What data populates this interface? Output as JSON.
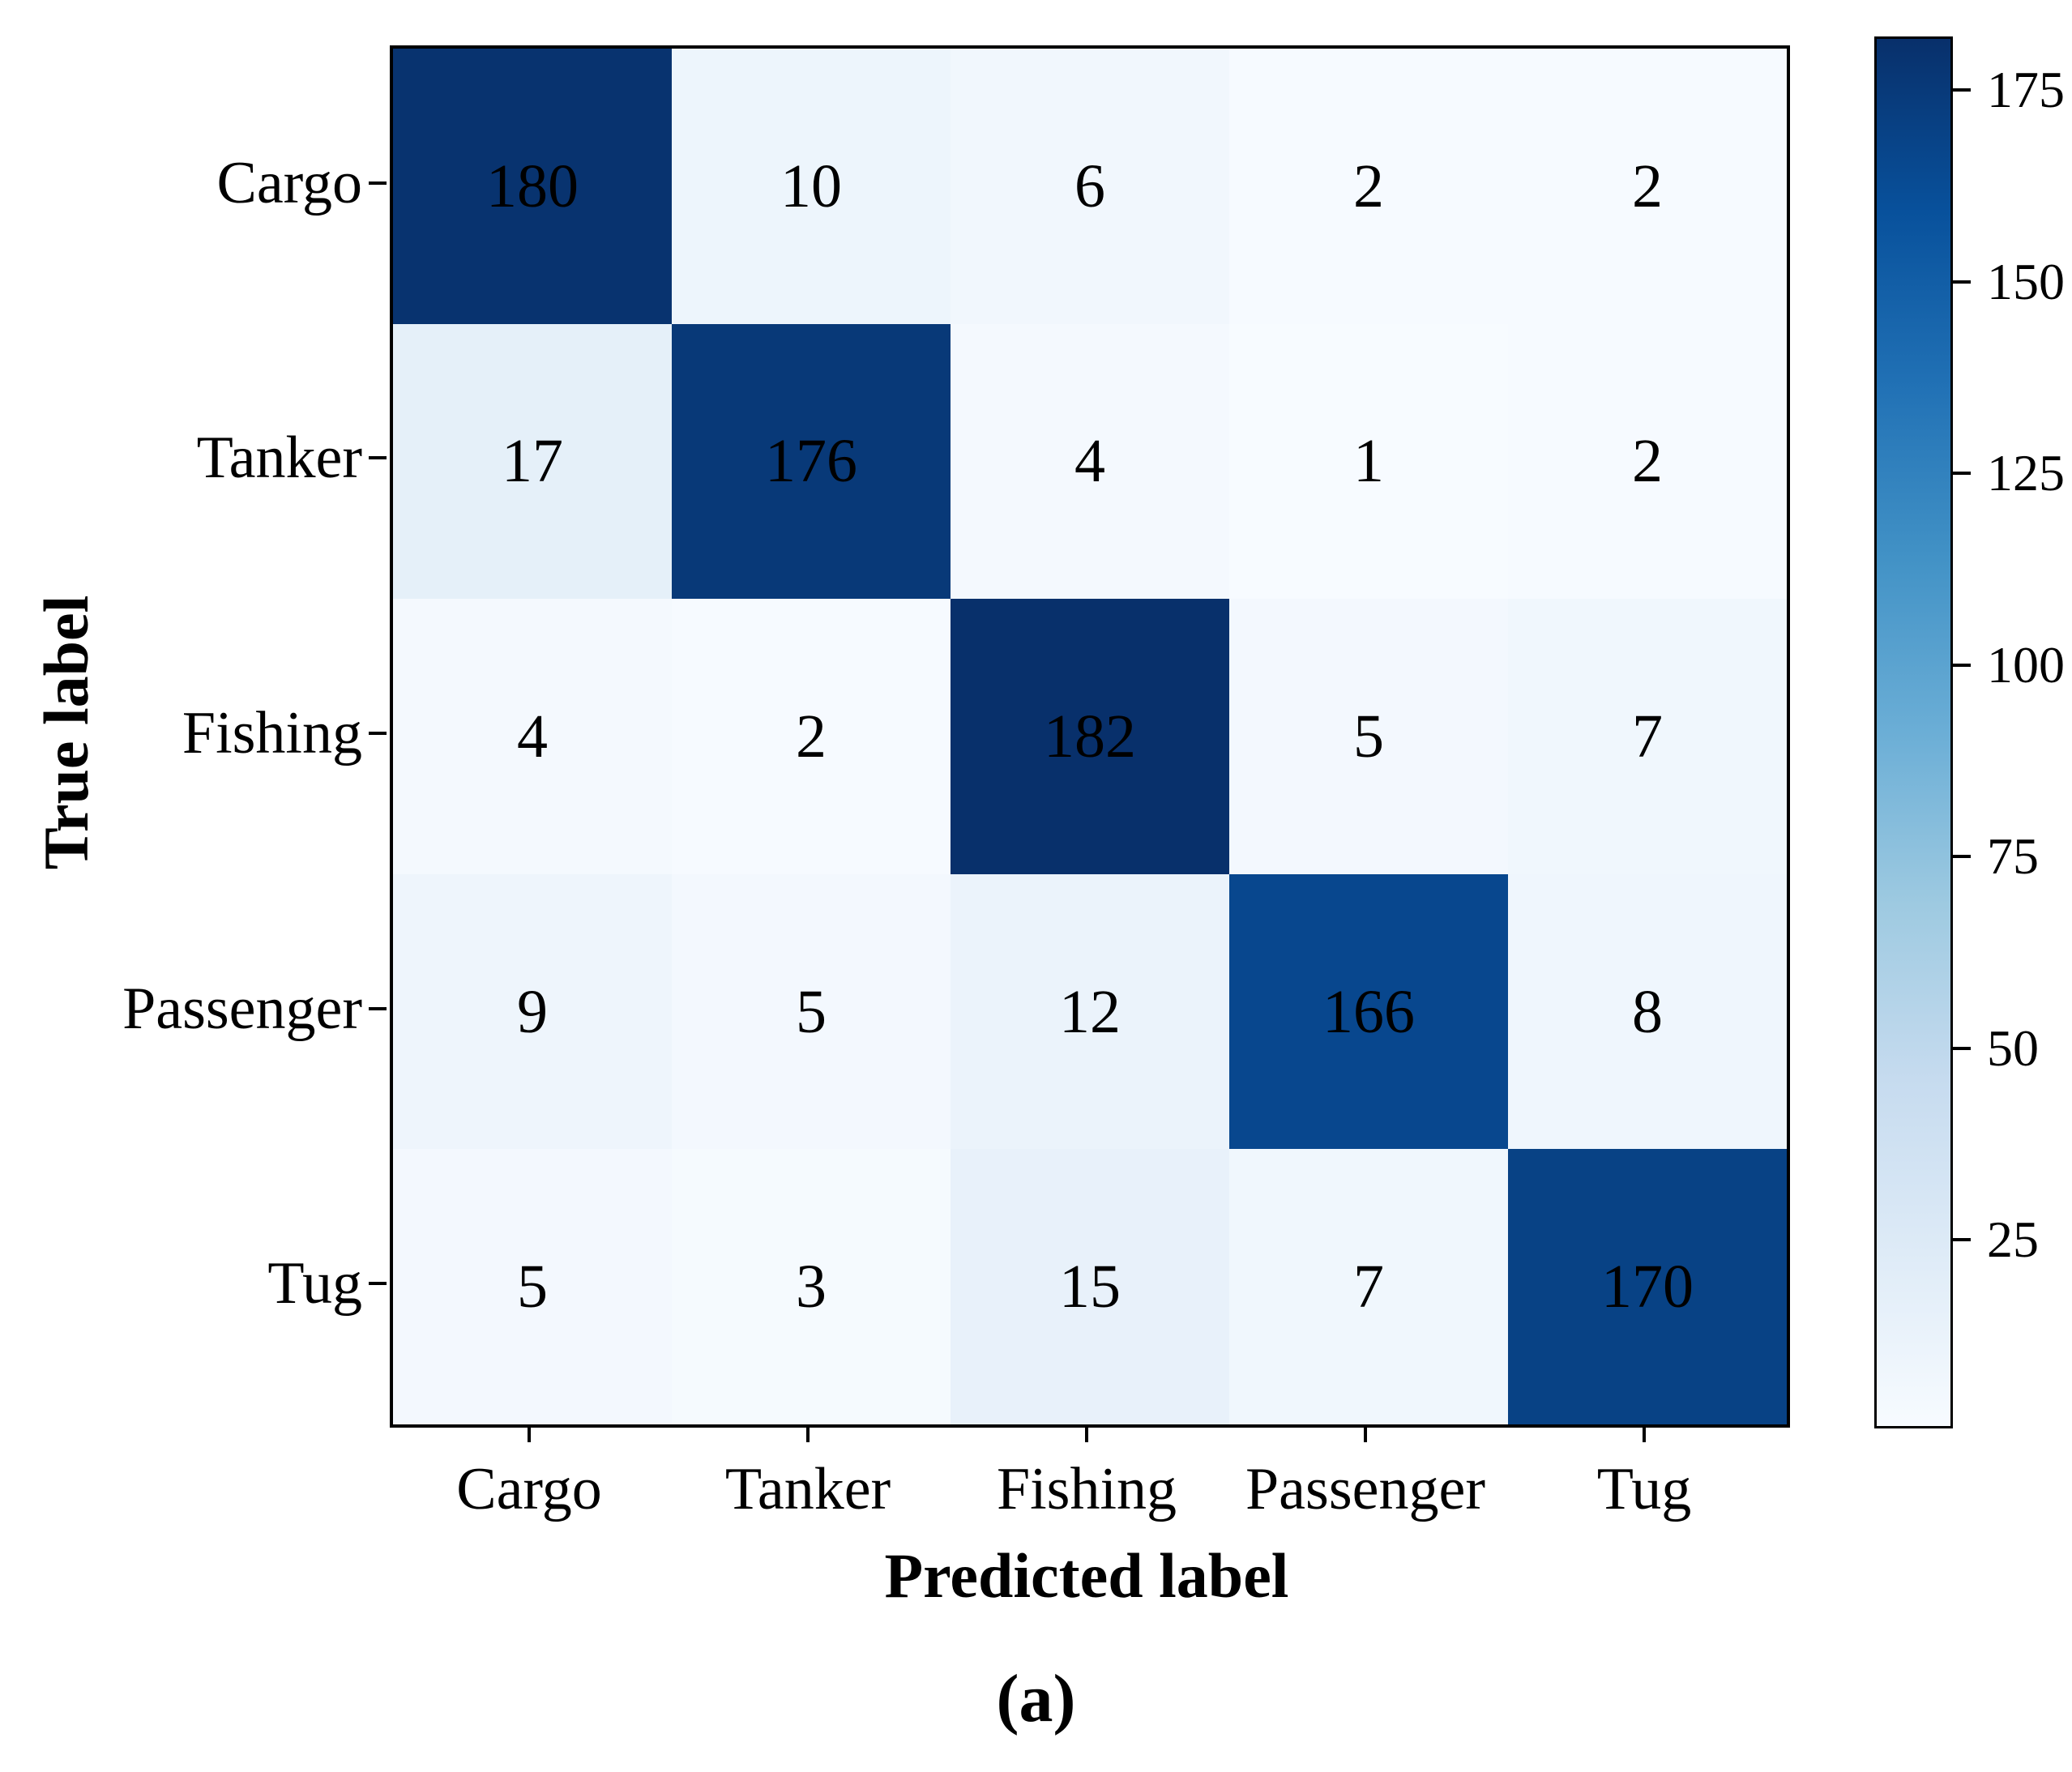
{
  "chart_data": {
    "type": "heatmap",
    "title": "",
    "xlabel": "Predicted label",
    "ylabel": "True label",
    "categories": [
      "Cargo",
      "Tanker",
      "Fishing",
      "Passenger",
      "Tug"
    ],
    "matrix": [
      [
        180,
        10,
        6,
        2,
        2
      ],
      [
        17,
        176,
        4,
        1,
        2
      ],
      [
        4,
        2,
        182,
        5,
        7
      ],
      [
        9,
        5,
        12,
        166,
        8
      ],
      [
        5,
        3,
        15,
        7,
        170
      ]
    ],
    "colormap": "Blues",
    "colormap_anchors": [
      "#f7fbff",
      "#deebf7",
      "#c6dbef",
      "#9ecae1",
      "#6baed6",
      "#4292c6",
      "#2171b5",
      "#08519c",
      "#08306b"
    ],
    "vmin": 1,
    "vmax": 182,
    "colorbar_ticks": [
      175,
      150,
      125,
      100,
      75,
      50,
      25
    ],
    "legend_position": "right",
    "grid": false,
    "cell_text_color": "#000000",
    "spine_color": "#000000",
    "caption": "(a)"
  }
}
